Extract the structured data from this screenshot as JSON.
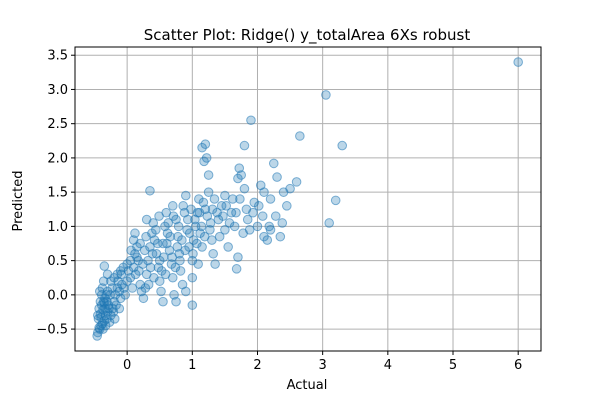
{
  "chart_data": {
    "type": "scatter",
    "title": "Scatter Plot: Ridge() y_totalArea 6Xs robust",
    "xlabel": "Actual",
    "ylabel": "Predicted",
    "xlim": [
      -0.8,
      6.35
    ],
    "ylim": [
      -0.82,
      3.62
    ],
    "xticks": [
      0,
      1,
      2,
      3,
      4,
      5,
      6
    ],
    "yticks": [
      -0.5,
      0.0,
      0.5,
      1.0,
      1.5,
      2.0,
      2.5,
      3.0,
      3.5
    ],
    "xtick_labels": [
      "0",
      "1",
      "2",
      "3",
      "4",
      "5",
      "6"
    ],
    "ytick_labels": [
      "−0.5",
      "0.0",
      "0.5",
      "1.0",
      "1.5",
      "2.0",
      "2.5",
      "3.0",
      "3.5"
    ],
    "grid": true,
    "marker_color": "#1f77b4",
    "marker_alpha": 0.3,
    "points": [
      [
        -0.45,
        -0.55
      ],
      [
        -0.42,
        -0.5
      ],
      [
        -0.4,
        -0.45
      ],
      [
        -0.38,
        -0.42
      ],
      [
        -0.35,
        -0.38
      ],
      [
        -0.33,
        -0.3
      ],
      [
        -0.3,
        -0.25
      ],
      [
        -0.28,
        -0.2
      ],
      [
        -0.44,
        -0.35
      ],
      [
        -0.41,
        -0.28
      ],
      [
        -0.39,
        -0.15
      ],
      [
        -0.36,
        -0.1
      ],
      [
        -0.34,
        -0.05
      ],
      [
        -0.32,
        0.0
      ],
      [
        -0.3,
        0.05
      ],
      [
        -0.27,
        -0.4
      ],
      [
        -0.46,
        -0.6
      ],
      [
        -0.43,
        -0.48
      ],
      [
        -0.4,
        -0.33
      ],
      [
        -0.37,
        -0.22
      ],
      [
        -0.35,
        -0.12
      ],
      [
        -0.33,
        -0.45
      ],
      [
        -0.31,
        -0.35
      ],
      [
        -0.29,
        -0.15
      ],
      [
        -0.25,
        -0.3
      ],
      [
        -0.22,
        -0.2
      ],
      [
        -0.2,
        -0.1
      ],
      [
        -0.18,
        0.0
      ],
      [
        -0.15,
        0.1
      ],
      [
        -0.12,
        0.05
      ],
      [
        -0.1,
        -0.05
      ],
      [
        -0.08,
        0.15
      ],
      [
        -0.38,
        0.1
      ],
      [
        -0.36,
        0.2
      ],
      [
        -0.35,
        0.42
      ],
      [
        -0.3,
        0.3
      ],
      [
        -0.25,
        0.2
      ],
      [
        -0.2,
        0.25
      ],
      [
        -0.15,
        0.3
      ],
      [
        -0.1,
        0.35
      ],
      [
        -0.05,
        0.1
      ],
      [
        0.0,
        0.2
      ],
      [
        0.05,
        0.25
      ],
      [
        0.0,
        0.45
      ],
      [
        0.05,
        0.5
      ],
      [
        0.1,
        0.4
      ],
      [
        0.12,
        0.6
      ],
      [
        0.15,
        0.7
      ],
      [
        0.1,
        0.8
      ],
      [
        0.12,
        0.9
      ],
      [
        0.15,
        0.55
      ],
      [
        0.18,
        0.35
      ],
      [
        0.2,
        0.15
      ],
      [
        0.22,
        0.05
      ],
      [
        0.25,
        -0.05
      ],
      [
        0.28,
        0.1
      ],
      [
        0.3,
        0.3
      ],
      [
        0.32,
        0.5
      ],
      [
        0.35,
        0.7
      ],
      [
        0.38,
        0.9
      ],
      [
        0.3,
        1.1
      ],
      [
        0.35,
        1.52
      ],
      [
        0.4,
        1.05
      ],
      [
        0.42,
        0.8
      ],
      [
        0.45,
        0.6
      ],
      [
        0.48,
        0.4
      ],
      [
        0.5,
        0.2
      ],
      [
        0.52,
        0.05
      ],
      [
        0.55,
        -0.1
      ],
      [
        0.5,
        0.5
      ],
      [
        0.55,
        0.75
      ],
      [
        0.58,
        1.0
      ],
      [
        0.6,
        1.2
      ],
      [
        0.62,
        0.9
      ],
      [
        0.65,
        0.65
      ],
      [
        0.68,
        0.45
      ],
      [
        0.7,
        0.25
      ],
      [
        0.72,
        0.0
      ],
      [
        0.75,
        -0.1
      ],
      [
        0.7,
        1.3
      ],
      [
        0.75,
        1.1
      ],
      [
        0.78,
        0.85
      ],
      [
        0.8,
        0.6
      ],
      [
        0.82,
        0.35
      ],
      [
        0.85,
        0.15
      ],
      [
        0.9,
        0.05
      ],
      [
        0.88,
        1.2
      ],
      [
        0.9,
        1.45
      ],
      [
        0.92,
        0.95
      ],
      [
        0.95,
        0.7
      ],
      [
        1.0,
        0.5
      ],
      [
        1.0,
        -0.15
      ],
      [
        1.0,
        0.25
      ],
      [
        1.02,
        0.8
      ],
      [
        1.05,
        1.0
      ],
      [
        1.08,
        1.2
      ],
      [
        1.1,
        1.4
      ],
      [
        1.12,
        0.9
      ],
      [
        1.15,
        0.7
      ],
      [
        1.15,
        2.15
      ],
      [
        1.2,
        2.2
      ],
      [
        1.18,
        1.95
      ],
      [
        1.22,
        2.0
      ],
      [
        1.25,
        1.75
      ],
      [
        1.2,
        1.25
      ],
      [
        1.25,
        1.5
      ],
      [
        1.28,
        1.05
      ],
      [
        1.3,
        0.8
      ],
      [
        1.32,
        0.6
      ],
      [
        1.35,
        0.45
      ],
      [
        1.4,
        1.1
      ],
      [
        1.45,
        1.3
      ],
      [
        1.5,
        1.45
      ],
      [
        1.5,
        0.95
      ],
      [
        1.55,
        0.7
      ],
      [
        1.6,
        1.2
      ],
      [
        1.65,
        1.0
      ],
      [
        1.7,
        1.7
      ],
      [
        1.72,
        1.85
      ],
      [
        1.75,
        1.75
      ],
      [
        1.8,
        1.55
      ],
      [
        1.8,
        2.18
      ],
      [
        1.78,
        0.9
      ],
      [
        1.7,
        0.55
      ],
      [
        1.68,
        0.38
      ],
      [
        1.85,
        1.1
      ],
      [
        1.9,
        2.55
      ],
      [
        1.95,
        1.35
      ],
      [
        2.0,
        1.0
      ],
      [
        2.05,
        1.6
      ],
      [
        2.1,
        1.5
      ],
      [
        2.1,
        0.85
      ],
      [
        2.15,
        0.8
      ],
      [
        2.2,
        1.4
      ],
      [
        2.2,
        0.95
      ],
      [
        2.25,
        1.92
      ],
      [
        2.3,
        1.72
      ],
      [
        2.35,
        0.85
      ],
      [
        2.4,
        1.5
      ],
      [
        2.45,
        1.3
      ],
      [
        2.5,
        1.55
      ],
      [
        2.6,
        1.65
      ],
      [
        2.65,
        2.32
      ],
      [
        3.05,
        2.92
      ],
      [
        3.1,
        1.05
      ],
      [
        3.2,
        1.38
      ],
      [
        3.3,
        2.18
      ],
      [
        6.0,
        3.4
      ],
      [
        -0.45,
        -0.3
      ],
      [
        -0.43,
        -0.2
      ],
      [
        -0.41,
        -0.1
      ],
      [
        -0.39,
        0.0
      ],
      [
        -0.42,
        0.05
      ],
      [
        -0.37,
        -0.5
      ],
      [
        -0.34,
        -0.2
      ],
      [
        -0.31,
        -0.1
      ],
      [
        -0.26,
        0.0
      ],
      [
        -0.23,
        0.1
      ],
      [
        -0.21,
        -0.25
      ],
      [
        -0.19,
        -0.35
      ],
      [
        -0.17,
        -0.15
      ],
      [
        -0.14,
        0.2
      ],
      [
        -0.12,
        -0.2
      ],
      [
        -0.09,
        0.3
      ],
      [
        -0.06,
        0.4
      ],
      [
        -0.03,
        0.0
      ],
      [
        0.02,
        0.35
      ],
      [
        0.06,
        0.65
      ],
      [
        0.08,
        0.1
      ],
      [
        0.13,
        0.3
      ],
      [
        0.17,
        0.5
      ],
      [
        0.2,
        0.75
      ],
      [
        0.24,
        0.45
      ],
      [
        0.27,
        0.65
      ],
      [
        0.29,
        0.85
      ],
      [
        0.33,
        0.15
      ],
      [
        0.36,
        0.4
      ],
      [
        0.39,
        0.6
      ],
      [
        0.41,
        0.25
      ],
      [
        0.44,
        0.95
      ],
      [
        0.47,
        0.75
      ],
      [
        0.49,
        1.15
      ],
      [
        0.53,
        0.35
      ],
      [
        0.56,
        0.55
      ],
      [
        0.59,
        0.3
      ],
      [
        0.61,
        0.75
      ],
      [
        0.63,
        1.05
      ],
      [
        0.66,
        0.85
      ],
      [
        0.69,
        0.55
      ],
      [
        0.71,
        1.15
      ],
      [
        0.74,
        0.4
      ],
      [
        0.77,
        0.7
      ],
      [
        0.79,
        1.0
      ],
      [
        0.81,
        0.5
      ],
      [
        0.84,
        0.8
      ],
      [
        0.86,
        1.3
      ],
      [
        0.89,
        0.65
      ],
      [
        0.93,
        1.1
      ],
      [
        0.96,
        0.9
      ],
      [
        0.98,
        1.25
      ],
      [
        1.01,
        0.6
      ],
      [
        1.04,
        1.1
      ],
      [
        1.07,
        0.75
      ],
      [
        1.09,
        0.45
      ],
      [
        1.11,
        1.2
      ],
      [
        1.14,
        1.0
      ],
      [
        1.17,
        1.35
      ],
      [
        1.19,
        0.85
      ],
      [
        1.23,
        1.15
      ],
      [
        1.27,
        0.95
      ],
      [
        1.31,
        1.25
      ],
      [
        1.34,
        1.4
      ],
      [
        1.38,
        1.2
      ],
      [
        1.42,
        0.85
      ],
      [
        1.47,
        1.15
      ],
      [
        1.52,
        1.3
      ],
      [
        1.57,
        1.05
      ],
      [
        1.62,
        1.4
      ],
      [
        1.67,
        1.2
      ],
      [
        1.73,
        1.4
      ],
      [
        1.83,
        1.25
      ],
      [
        1.88,
        0.95
      ],
      [
        1.93,
        1.2
      ],
      [
        2.02,
        1.3
      ],
      [
        2.08,
        1.15
      ],
      [
        2.18,
        1.0
      ],
      [
        2.28,
        1.15
      ],
      [
        2.38,
        1.05
      ]
    ]
  }
}
